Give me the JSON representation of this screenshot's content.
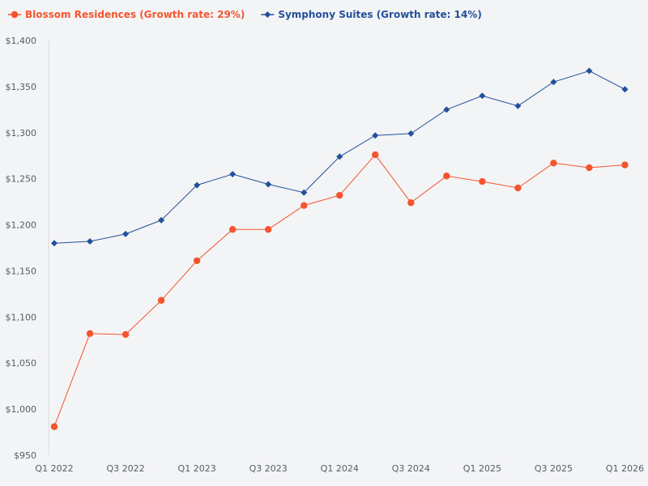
{
  "chart_data": {
    "type": "line",
    "title": "",
    "xlabel": "",
    "ylabel": "",
    "ylim": [
      950,
      1400
    ],
    "yticks": [
      950,
      1000,
      1050,
      1100,
      1150,
      1200,
      1250,
      1300,
      1350,
      1400
    ],
    "ytick_labels": [
      "$950",
      "$1,000",
      "$1,050",
      "$1,100",
      "$1,150",
      "$1,200",
      "$1,250",
      "$1,300",
      "$1,350",
      "$1,400"
    ],
    "categories": [
      "Q1 2022",
      "Q2 2022",
      "Q3 2022",
      "Q4 2022",
      "Q1 2023",
      "Q2 2023",
      "Q3 2023",
      "Q4 2023",
      "Q1 2024",
      "Q2 2024",
      "Q3 2024",
      "Q4 2024",
      "Q1 2025",
      "Q2 2025",
      "Q3 2025",
      "Q4 2025",
      "Q1 2026"
    ],
    "xtick_labels": [
      "Q1 2022",
      "",
      "Q3 2022",
      "",
      "Q1 2023",
      "",
      "Q3 2023",
      "",
      "Q1 2024",
      "",
      "Q3 2024",
      "",
      "Q1 2025",
      "",
      "Q3 2025",
      "",
      "Q1 2026"
    ],
    "legend_position": "top-left",
    "series": [
      {
        "name": "Blossom Residences (Growth rate: 29%)",
        "color": "#f4552e",
        "marker": "circle",
        "values": [
          981,
          1082,
          1081,
          1118,
          1161,
          1195,
          1195,
          1221,
          1232,
          1276,
          1224,
          1253,
          1247,
          1240,
          1267,
          1262,
          1265
        ]
      },
      {
        "name": "Symphony Suites (Growth rate: 14%)",
        "color": "#23509b",
        "marker": "diamond",
        "values": [
          1180,
          1182,
          1190,
          1205,
          1243,
          1255,
          1244,
          1235,
          1274,
          1297,
          1299,
          1325,
          1340,
          1329,
          1355,
          1367,
          1347
        ]
      }
    ]
  }
}
